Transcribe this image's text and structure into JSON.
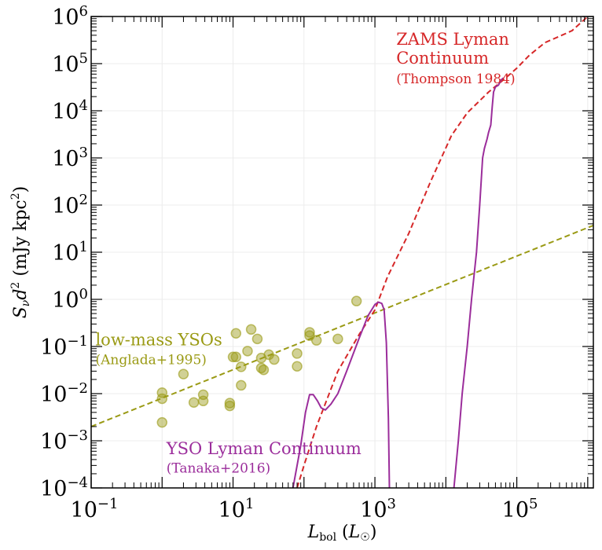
{
  "chart_data": {
    "type": "scatter",
    "title": "",
    "xlabel": "L_bol (L_☉)",
    "ylabel": "S_ν d² (mJy kpc²)",
    "x_scale": "log",
    "y_scale": "log",
    "xlim": [
      0.1,
      1200000
    ],
    "ylim": [
      0.0001,
      1000000
    ],
    "grid": true,
    "x_ticks": [
      {
        "value": 0.1,
        "base": "10",
        "exp": "−1"
      },
      {
        "value": 10,
        "base": "10",
        "exp": "1"
      },
      {
        "value": 1000,
        "base": "10",
        "exp": "3"
      },
      {
        "value": 100000,
        "base": "10",
        "exp": "5"
      }
    ],
    "y_ticks": [
      {
        "value": 0.0001,
        "base": "10",
        "exp": "−4"
      },
      {
        "value": 0.001,
        "base": "10",
        "exp": "−3"
      },
      {
        "value": 0.01,
        "base": "10",
        "exp": "−2"
      },
      {
        "value": 0.1,
        "base": "10",
        "exp": "−1"
      },
      {
        "value": 1,
        "base": "10",
        "exp": "0"
      },
      {
        "value": 10,
        "base": "10",
        "exp": "1"
      },
      {
        "value": 100,
        "base": "10",
        "exp": "2"
      },
      {
        "value": 1000,
        "base": "10",
        "exp": "3"
      },
      {
        "value": 10000,
        "base": "10",
        "exp": "4"
      },
      {
        "value": 100000,
        "base": "10",
        "exp": "5"
      },
      {
        "value": 1000000,
        "base": "10",
        "exp": "6"
      }
    ],
    "series": [
      {
        "kind": "scatter",
        "color": "#9a9a14",
        "points": [
          [
            1.0,
            0.0105
          ],
          [
            1.0,
            0.0078
          ],
          [
            1.0,
            0.00245
          ],
          [
            2.0,
            0.026
          ],
          [
            2.8,
            0.0065
          ],
          [
            3.8,
            0.0095
          ],
          [
            3.8,
            0.007
          ],
          [
            9.0,
            0.0063
          ],
          [
            9.0,
            0.0055
          ],
          [
            10.0,
            0.06
          ],
          [
            11.0,
            0.06
          ],
          [
            11.0,
            0.19
          ],
          [
            13.0,
            0.037
          ],
          [
            13.0,
            0.015
          ],
          [
            16.0,
            0.08
          ],
          [
            18.0,
            0.23
          ],
          [
            22.0,
            0.145
          ],
          [
            25.0,
            0.035
          ],
          [
            25.0,
            0.057
          ],
          [
            27.0,
            0.032
          ],
          [
            32.0,
            0.067
          ],
          [
            38.0,
            0.053
          ],
          [
            80.0,
            0.071
          ],
          [
            80.0,
            0.038
          ],
          [
            120.0,
            0.2
          ],
          [
            120.0,
            0.17
          ],
          [
            150.0,
            0.135
          ],
          [
            300.0,
            0.145
          ],
          [
            550.0,
            0.92
          ]
        ]
      },
      {
        "kind": "line",
        "dash": true,
        "color": "#9a9a14",
        "points": [
          [
            0.1,
            0.002
          ],
          [
            1200000,
            37
          ]
        ]
      },
      {
        "kind": "line",
        "dash": true,
        "color": "#d62728",
        "points": [
          [
            80,
            0.0001
          ],
          [
            100,
            0.0003
          ],
          [
            150,
            0.002
          ],
          [
            300,
            0.03
          ],
          [
            600,
            0.18
          ],
          [
            1000,
            0.6
          ],
          [
            1500,
            3
          ],
          [
            3000,
            25
          ],
          [
            6000,
            300
          ],
          [
            12000,
            3000
          ],
          [
            20000,
            9000
          ],
          [
            40000,
            25000
          ],
          [
            70000,
            50000
          ],
          [
            100000,
            80000
          ],
          [
            150000,
            150000
          ],
          [
            250000,
            280000
          ],
          [
            400000,
            380000
          ],
          [
            600000,
            500000
          ],
          [
            1000000,
            1000000
          ]
        ]
      },
      {
        "kind": "line",
        "dash": false,
        "color": "#9b2d9b",
        "points": [
          [
            70,
            0.0001
          ],
          [
            90,
            0.0008
          ],
          [
            105,
            0.004
          ],
          [
            120,
            0.0095
          ],
          [
            135,
            0.0095
          ],
          [
            155,
            0.007
          ],
          [
            175,
            0.005
          ],
          [
            200,
            0.0045
          ],
          [
            240,
            0.006
          ],
          [
            300,
            0.01
          ],
          [
            400,
            0.03
          ],
          [
            600,
            0.15
          ],
          [
            800,
            0.45
          ],
          [
            1000,
            0.78
          ],
          [
            1120,
            0.87
          ],
          [
            1250,
            0.82
          ],
          [
            1350,
            0.6
          ],
          [
            1450,
            0.12
          ],
          [
            1550,
            0.003
          ],
          [
            1600,
            0.0001
          ]
        ]
      },
      {
        "kind": "line",
        "dash": false,
        "color": "#9b2d9b",
        "points": [
          [
            13000,
            0.0001
          ],
          [
            15000,
            0.001
          ],
          [
            17000,
            0.01
          ],
          [
            20000,
            0.1
          ],
          [
            23000,
            1
          ],
          [
            27000,
            10
          ],
          [
            30000,
            100
          ],
          [
            33000,
            1000
          ],
          [
            35000,
            1600
          ],
          [
            38000,
            2500
          ],
          [
            40000,
            3500
          ],
          [
            43000,
            5000
          ],
          [
            45000,
            12000
          ],
          [
            47000,
            25000
          ],
          [
            50000,
            32000
          ],
          [
            55000,
            35000
          ],
          [
            60000,
            45000
          ],
          [
            65000,
            50000
          ]
        ]
      }
    ],
    "annotations": [
      {
        "text": "ZAMS Lyman",
        "size": "big",
        "color": "#d62728",
        "x": 2000,
        "y": 250000
      },
      {
        "text": "Continuum",
        "size": "big",
        "color": "#d62728",
        "x": 2000,
        "y": 100000
      },
      {
        "text": "(Thompson 1984)",
        "size": "small",
        "color": "#d62728",
        "x": 2000,
        "y": 38000
      },
      {
        "text": "low-mass YSOs",
        "size": "big",
        "color": "#9a9a14",
        "x": 0.115,
        "y": 0.105
      },
      {
        "text": "(Anglada+1995)",
        "size": "small",
        "color": "#9a9a14",
        "x": 0.115,
        "y": 0.042
      },
      {
        "text": "YSO Lyman Continuum",
        "size": "big",
        "color": "#9b2d9b",
        "x": 1.15,
        "y": 0.00052
      },
      {
        "text": "(Tanaka+2016)",
        "size": "small",
        "color": "#9b2d9b",
        "x": 1.15,
        "y": 0.00021
      }
    ]
  }
}
